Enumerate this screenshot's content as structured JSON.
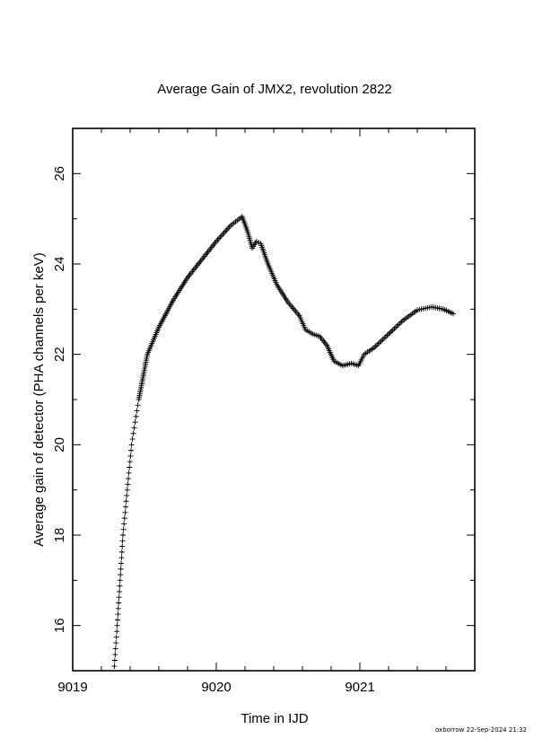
{
  "chart_data": {
    "type": "scatter",
    "marker": "plus",
    "title": "Average Gain of JMX2, revolution 2822",
    "xlabel": "Time in IJD",
    "ylabel": "Average gain of detector (PHA channels per keV)",
    "xlim": [
      9019,
      9021.8
    ],
    "ylim": [
      15,
      27
    ],
    "xticks": [
      9019,
      9020,
      9021
    ],
    "yticks": [
      16,
      18,
      20,
      22,
      24,
      26
    ],
    "grid": false,
    "anchors": [
      [
        9019.29,
        15.1
      ],
      [
        9019.31,
        16.0
      ],
      [
        9019.33,
        17.0
      ],
      [
        9019.35,
        18.0
      ],
      [
        9019.38,
        19.0
      ],
      [
        9019.41,
        20.0
      ],
      [
        9019.46,
        21.0
      ],
      [
        9019.52,
        22.0
      ],
      [
        9019.6,
        22.6
      ],
      [
        9019.7,
        23.2
      ],
      [
        9019.8,
        23.7
      ],
      [
        9019.9,
        24.1
      ],
      [
        9020.0,
        24.5
      ],
      [
        9020.1,
        24.85
      ],
      [
        9020.18,
        25.05
      ],
      [
        9020.22,
        24.7
      ],
      [
        9020.25,
        24.35
      ],
      [
        9020.28,
        24.5
      ],
      [
        9020.31,
        24.45
      ],
      [
        9020.36,
        24.0
      ],
      [
        9020.42,
        23.55
      ],
      [
        9020.5,
        23.15
      ],
      [
        9020.58,
        22.85
      ],
      [
        9020.62,
        22.55
      ],
      [
        9020.67,
        22.45
      ],
      [
        9020.72,
        22.4
      ],
      [
        9020.77,
        22.2
      ],
      [
        9020.82,
        21.85
      ],
      [
        9020.88,
        21.75
      ],
      [
        9020.94,
        21.8
      ],
      [
        9020.99,
        21.75
      ],
      [
        9021.03,
        22.0
      ],
      [
        9021.1,
        22.15
      ],
      [
        9021.2,
        22.45
      ],
      [
        9021.3,
        22.75
      ],
      [
        9021.4,
        22.98
      ],
      [
        9021.5,
        23.05
      ],
      [
        9021.58,
        23.0
      ],
      [
        9021.65,
        22.9
      ]
    ]
  },
  "footer": "oxborrow 22-Sep-2024 21:32"
}
